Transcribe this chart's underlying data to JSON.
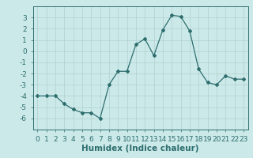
{
  "x": [
    0,
    1,
    2,
    3,
    4,
    5,
    6,
    7,
    8,
    9,
    10,
    11,
    12,
    13,
    14,
    15,
    16,
    17,
    18,
    19,
    20,
    21,
    22,
    23
  ],
  "y": [
    -4.0,
    -4.0,
    -4.0,
    -4.7,
    -5.2,
    -5.5,
    -5.5,
    -6.0,
    -3.0,
    -1.8,
    -1.8,
    0.6,
    1.1,
    -0.4,
    1.9,
    3.2,
    3.1,
    1.8,
    -1.6,
    -2.8,
    -3.0,
    -2.2,
    -2.5,
    -2.5
  ],
  "line_color": "#2e6e6e",
  "marker": "D",
  "marker_size": 2,
  "bg_color": "#cce9e9",
  "grid_color": "#b0d0d0",
  "xlabel": "Humidex (Indice chaleur)",
  "xlim": [
    -0.5,
    23.5
  ],
  "ylim": [
    -7,
    4
  ],
  "yticks": [
    -6,
    -5,
    -4,
    -3,
    -2,
    -1,
    0,
    1,
    2,
    3
  ],
  "xticks": [
    0,
    1,
    2,
    3,
    4,
    5,
    6,
    7,
    8,
    9,
    10,
    11,
    12,
    13,
    14,
    15,
    16,
    17,
    18,
    19,
    20,
    21,
    22,
    23
  ],
  "xlabel_fontsize": 7.5,
  "tick_fontsize": 6.5
}
